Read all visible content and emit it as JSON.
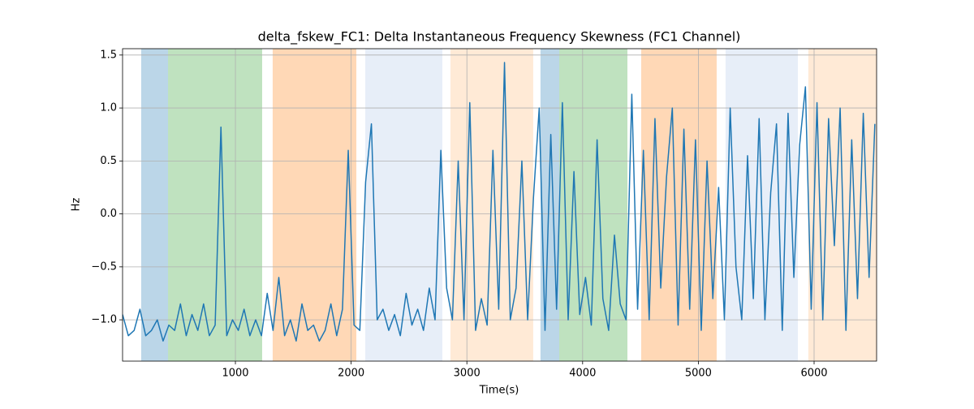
{
  "chart_data": {
    "type": "line",
    "title": "delta_fskew_FC1: Delta Instantaneous Frequency Skewness (FC1 Channel)",
    "x_label": "Time(s)",
    "y_label": "Hz",
    "xlim": [
      25,
      6540
    ],
    "ylim": [
      -1.39,
      1.56
    ],
    "xticks": [
      1000,
      2000,
      3000,
      4000,
      5000,
      6000
    ],
    "yticks": [
      {
        "value": -1.0,
        "label": "−1.0"
      },
      {
        "value": -0.5,
        "label": "−0.5"
      },
      {
        "value": 0,
        "label": "0.0"
      },
      0.5,
      {
        "value": 1.0,
        "label": "1.0"
      },
      1.5
    ],
    "grid": true,
    "spans": [
      {
        "x0": 186,
        "x1": 418,
        "color": "#1f77b4",
        "opacity": 0.3
      },
      {
        "x0": 418,
        "x1": 1231,
        "color": "#2ca02c",
        "opacity": 0.3
      },
      {
        "x0": 1322,
        "x1": 2045,
        "color": "#ff7f0e",
        "opacity": 0.3
      },
      {
        "x0": 2122,
        "x1": 2788,
        "color": "#aec7e8",
        "opacity": 0.3
      },
      {
        "x0": 2858,
        "x1": 3573,
        "color": "#ffbb78",
        "opacity": 0.3
      },
      {
        "x0": 3636,
        "x1": 3798,
        "color": "#1f77b4",
        "opacity": 0.3
      },
      {
        "x0": 3798,
        "x1": 4387,
        "color": "#2ca02c",
        "opacity": 0.3
      },
      {
        "x0": 4506,
        "x1": 5158,
        "color": "#ff7f0e",
        "opacity": 0.3
      },
      {
        "x0": 5235,
        "x1": 5860,
        "color": "#aec7e8",
        "opacity": 0.3
      },
      {
        "x0": 5950,
        "x1": 6540,
        "color": "#ffbb78",
        "opacity": 0.3
      }
    ],
    "x": [
      25,
      75,
      125,
      175,
      225,
      275,
      325,
      375,
      425,
      475,
      525,
      575,
      625,
      675,
      725,
      775,
      825,
      875,
      925,
      975,
      1025,
      1075,
      1125,
      1175,
      1225,
      1275,
      1325,
      1375,
      1425,
      1475,
      1525,
      1575,
      1625,
      1675,
      1725,
      1775,
      1825,
      1875,
      1925,
      1975,
      2025,
      2075,
      2125,
      2175,
      2225,
      2275,
      2325,
      2375,
      2425,
      2475,
      2525,
      2575,
      2625,
      2675,
      2725,
      2775,
      2825,
      2875,
      2925,
      2975,
      3025,
      3075,
      3125,
      3175,
      3225,
      3275,
      3325,
      3375,
      3425,
      3475,
      3525,
      3575,
      3625,
      3675,
      3725,
      3775,
      3825,
      3875,
      3925,
      3975,
      4025,
      4075,
      4125,
      4175,
      4225,
      4275,
      4325,
      4375,
      4425,
      4475,
      4525,
      4575,
      4625,
      4675,
      4725,
      4775,
      4825,
      4875,
      4925,
      4975,
      5025,
      5075,
      5125,
      5175,
      5225,
      5275,
      5325,
      5375,
      5425,
      5475,
      5525,
      5575,
      5625,
      5675,
      5725,
      5775,
      5825,
      5875,
      5925,
      5975,
      6025,
      6075,
      6125,
      6175,
      6225,
      6275,
      6325,
      6375,
      6425,
      6475,
      6525
    ],
    "series": [
      {
        "name": "delta_fskew_FC1",
        "color": "#1f77b4",
        "values": [
          -0.95,
          -1.15,
          -1.1,
          -0.9,
          -1.15,
          -1.1,
          -1.0,
          -1.2,
          -1.05,
          -1.1,
          -0.85,
          -1.15,
          -0.95,
          -1.1,
          -0.85,
          -1.15,
          -1.05,
          0.82,
          -1.15,
          -1.0,
          -1.1,
          -0.9,
          -1.15,
          -1.0,
          -1.15,
          -0.75,
          -1.1,
          -0.6,
          -1.15,
          -1.0,
          -1.2,
          -0.85,
          -1.1,
          -1.05,
          -1.2,
          -1.1,
          -0.85,
          -1.15,
          -0.9,
          0.6,
          -1.05,
          -1.1,
          0.3,
          0.85,
          -1.0,
          -0.9,
          -1.1,
          -0.95,
          -1.15,
          -0.75,
          -1.05,
          -0.9,
          -1.1,
          -0.7,
          -1.0,
          0.6,
          -0.7,
          -1.0,
          0.5,
          -1.0,
          1.05,
          -1.1,
          -0.8,
          -1.05,
          0.6,
          -0.9,
          1.43,
          -1.0,
          -0.7,
          0.5,
          -1.0,
          0.15,
          1.0,
          -1.1,
          0.75,
          -0.9,
          1.05,
          -1.0,
          0.4,
          -0.95,
          -0.6,
          -1.05,
          0.7,
          -0.8,
          -1.1,
          -0.2,
          -0.85,
          -1.0,
          1.13,
          -0.9,
          0.6,
          -1.0,
          0.9,
          -0.7,
          0.35,
          1.0,
          -1.05,
          0.8,
          -0.9,
          0.7,
          -1.1,
          0.5,
          -0.8,
          0.25,
          -1.0,
          1.0,
          -0.5,
          -1.0,
          0.55,
          -0.8,
          0.9,
          -1.0,
          0.2,
          0.85,
          -1.1,
          0.95,
          -0.6,
          0.65,
          1.2,
          -0.9,
          1.05,
          -1.0,
          0.9,
          -0.3,
          1.0,
          -1.1,
          0.7,
          -0.8,
          0.95,
          -0.6,
          0.85
        ]
      }
    ]
  }
}
